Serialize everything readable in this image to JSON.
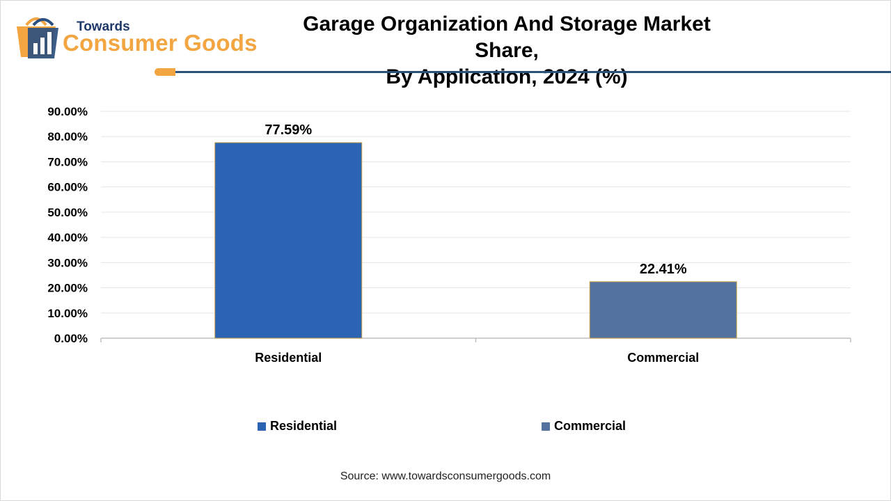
{
  "header": {
    "logo_line1": "Towards",
    "logo_line2": "Consumer Goods",
    "title_line1": "Garage Organization And Storage Market Share,",
    "title_line2": "By Application, 2024 (%)"
  },
  "colors": {
    "accent_orange": "#f2a541",
    "accent_navy": "#2b4f7e",
    "residential": "#2a64b2",
    "commercial": "#53729e"
  },
  "chart_data": {
    "type": "bar",
    "categories": [
      "Residential",
      "Commercial"
    ],
    "values": [
      77.59,
      22.41
    ],
    "data_labels": [
      "77.59%",
      "22.41%"
    ],
    "ylim": [
      0,
      90
    ],
    "yticks": [
      0,
      10,
      20,
      30,
      40,
      50,
      60,
      70,
      80,
      90
    ],
    "ytick_labels": [
      "0.00%",
      "10.00%",
      "20.00%",
      "30.00%",
      "40.00%",
      "50.00%",
      "60.00%",
      "70.00%",
      "80.00%",
      "90.00%"
    ],
    "grid": true,
    "legend": {
      "placement": "bottom",
      "entries": [
        "Residential",
        "Commercial"
      ]
    }
  },
  "footer": {
    "source": "Source: www.towardsconsumergoods.com"
  }
}
